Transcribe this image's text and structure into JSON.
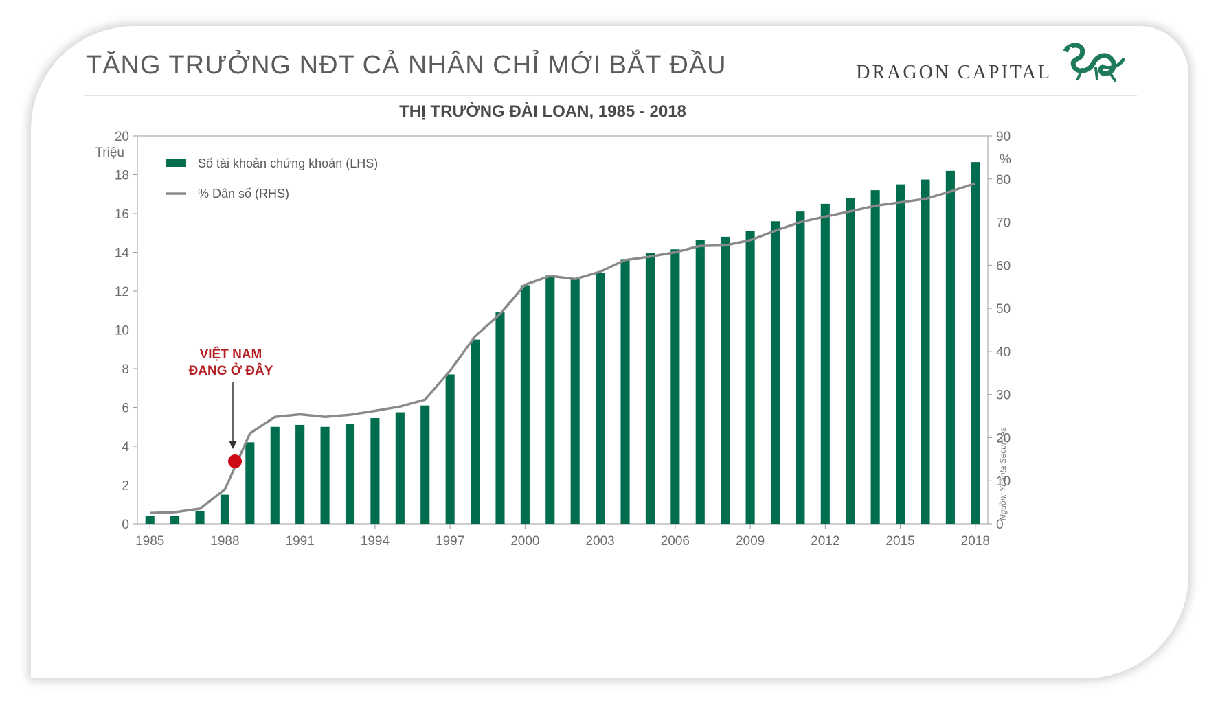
{
  "slide": {
    "title": "TĂNG TRƯỞNG NĐT CẢ NHÂN CHỈ MỚI BẮT ĐẦU",
    "brand_name": "DRAGON CAPITAL",
    "brand_icon": "dragon-logo-icon",
    "source": "Nguồn: Yuanta Securities"
  },
  "colors": {
    "bar": "#006d4f",
    "line": "#8a8a8a",
    "marker": "#cc0a15",
    "annotation": "#b51f24",
    "logo": "#1f7a5c"
  },
  "chart_data": {
    "type": "bar",
    "title": "THỊ TRƯỜNG ĐÀI LOAN, 1985 - 2018",
    "left_axis": {
      "unit": "Triệu",
      "ylim": [
        0,
        20
      ],
      "ticks": [
        0,
        2,
        4,
        6,
        8,
        10,
        12,
        14,
        16,
        18,
        20
      ]
    },
    "right_axis": {
      "unit": "%",
      "ylim": [
        0,
        90
      ],
      "ticks": [
        0,
        10,
        20,
        30,
        40,
        50,
        60,
        70,
        80,
        90
      ]
    },
    "x_ticks": [
      "1985",
      "1988",
      "1991",
      "1994",
      "1997",
      "2000",
      "2003",
      "2006",
      "2009",
      "2012",
      "2015",
      "2018"
    ],
    "x": [
      1985,
      1986,
      1987,
      1988,
      1989,
      1990,
      1991,
      1992,
      1993,
      1994,
      1995,
      1996,
      1997,
      1998,
      1999,
      2000,
      2001,
      2002,
      2003,
      2004,
      2005,
      2006,
      2007,
      2008,
      2009,
      2010,
      2011,
      2012,
      2013,
      2014,
      2015,
      2016,
      2017,
      2018
    ],
    "series": [
      {
        "name": "Số tài khoản chứng khoán (LHS)",
        "type": "bar",
        "axis": "left",
        "values": [
          0.4,
          0.4,
          0.65,
          1.5,
          4.2,
          5.0,
          5.1,
          5.0,
          5.15,
          5.45,
          5.75,
          6.1,
          7.7,
          9.5,
          10.9,
          12.3,
          12.8,
          12.6,
          12.95,
          13.65,
          13.95,
          14.15,
          14.65,
          14.8,
          15.1,
          15.6,
          16.1,
          16.5,
          16.8,
          17.2,
          17.5,
          17.75,
          18.2,
          18.65
        ]
      },
      {
        "name": "% Dân số (RHS)",
        "type": "line",
        "axis": "right",
        "values": [
          2.5,
          2.7,
          3.5,
          8.0,
          21.0,
          24.8,
          25.4,
          24.8,
          25.3,
          26.2,
          27.2,
          28.8,
          35.5,
          43.5,
          48.7,
          55.5,
          57.5,
          56.8,
          58.5,
          61.2,
          62.0,
          63.0,
          64.5,
          64.6,
          65.8,
          68.0,
          70.0,
          71.3,
          72.5,
          73.8,
          74.6,
          75.4,
          77.1,
          79.0
        ]
      }
    ],
    "legend_position": "top-left",
    "annotation": {
      "text_line1": "VIỆT NAM",
      "text_line2": "ĐANG Ở ĐÂY",
      "x": 1988.4,
      "y_right": 14.5
    }
  }
}
